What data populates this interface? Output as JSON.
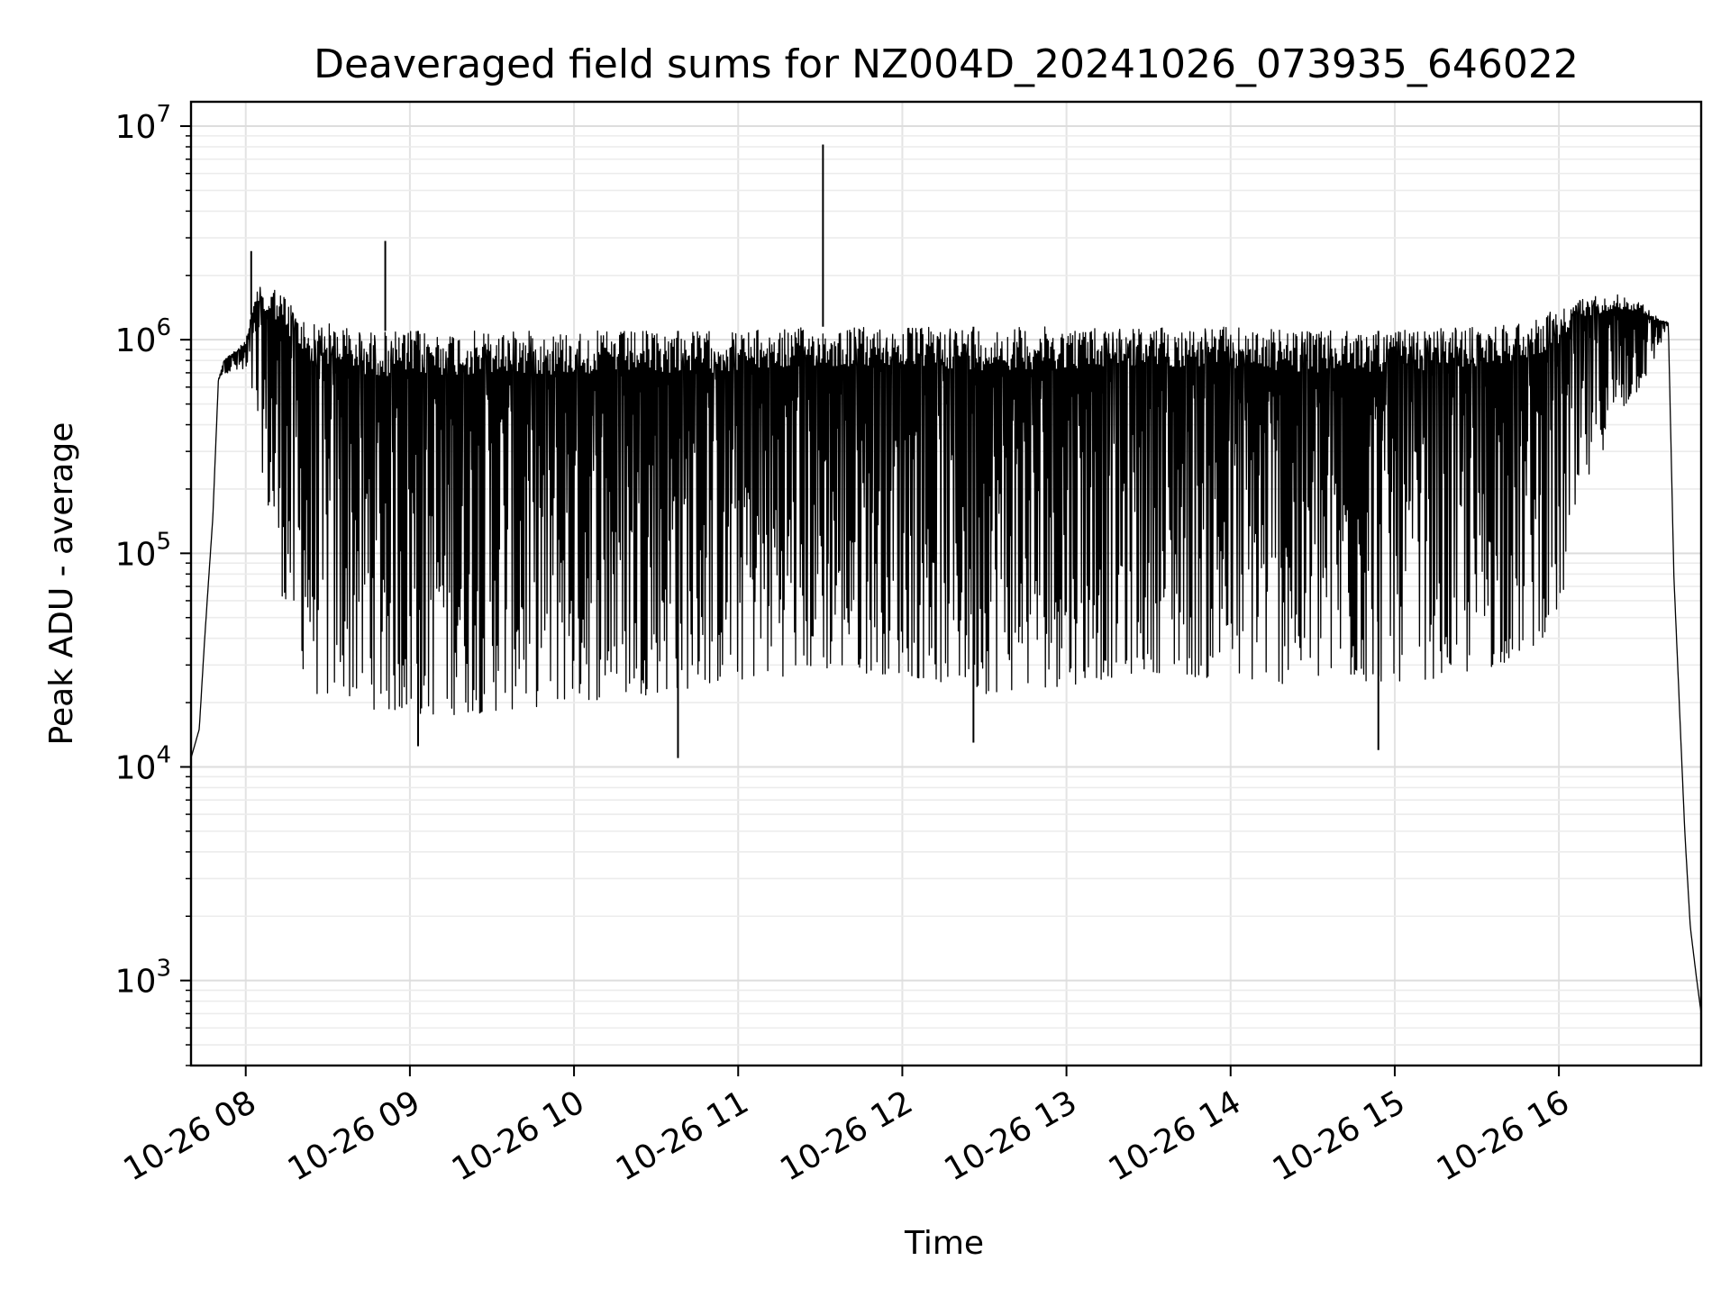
{
  "chart_data": {
    "type": "line",
    "title": "Deaveraged field sums for NZ004D_20241026_073935_646022",
    "xlabel": "Time",
    "ylabel": "Peak ADU - average",
    "yscale": "log",
    "ylim": [
      400,
      13000000
    ],
    "xlim": [
      "2024-10-26 07:40",
      "2024-10-26 16:52"
    ],
    "grid": true,
    "line_color": "#000000",
    "x_ticks": [
      {
        "t": "2024-10-26 08:00",
        "label": "10-26 08"
      },
      {
        "t": "2024-10-26 09:00",
        "label": "10-26 09"
      },
      {
        "t": "2024-10-26 10:00",
        "label": "10-26 10"
      },
      {
        "t": "2024-10-26 11:00",
        "label": "10-26 11"
      },
      {
        "t": "2024-10-26 12:00",
        "label": "10-26 12"
      },
      {
        "t": "2024-10-26 13:00",
        "label": "10-26 13"
      },
      {
        "t": "2024-10-26 14:00",
        "label": "10-26 14"
      },
      {
        "t": "2024-10-26 15:00",
        "label": "10-26 15"
      },
      {
        "t": "2024-10-26 16:00",
        "label": "10-26 16"
      }
    ],
    "y_ticks": [
      {
        "value": 1000,
        "base": "10",
        "exp": "3"
      },
      {
        "value": 10000,
        "base": "10",
        "exp": "4"
      },
      {
        "value": 100000,
        "base": "10",
        "exp": "5"
      },
      {
        "value": 1000000,
        "base": "10",
        "exp": "6"
      },
      {
        "value": 10000000,
        "base": "10",
        "exp": "7"
      }
    ],
    "series": [
      {
        "x": [
          "2024-10-26 07:40",
          "2024-10-26 07:43",
          "2024-10-26 07:45",
          "2024-10-26 07:48",
          "2024-10-26 07:50",
          "2024-10-26 07:52",
          "2024-10-26 07:54",
          "2024-10-26 07:57",
          "2024-10-26 08:00",
          "2024-10-26 08:03",
          "2024-10-26 08:05",
          "2024-10-26 08:07",
          "2024-10-26 08:10",
          "2024-10-26 08:15",
          "2024-10-26 08:20",
          "2024-10-26 08:25",
          "2024-10-26 08:30",
          "2024-10-26 08:35",
          "2024-10-26 08:40",
          "2024-10-26 08:50",
          "2024-10-26 09:00",
          "2024-10-26 09:30",
          "2024-10-26 10:00",
          "2024-10-26 10:30",
          "2024-10-26 11:00",
          "2024-10-26 11:30",
          "2024-10-26 12:00",
          "2024-10-26 12:30",
          "2024-10-26 13:00",
          "2024-10-26 13:30",
          "2024-10-26 14:00",
          "2024-10-26 14:30",
          "2024-10-26 15:00",
          "2024-10-26 15:30",
          "2024-10-26 15:50",
          "2024-10-26 16:00",
          "2024-10-26 16:10",
          "2024-10-26 16:20",
          "2024-10-26 16:30",
          "2024-10-26 16:35",
          "2024-10-26 16:40",
          "2024-10-26 16:42",
          "2024-10-26 16:44",
          "2024-10-26 16:46",
          "2024-10-26 16:48",
          "2024-10-26 16:50",
          "2024-10-26 16:52"
        ],
        "upper": [
          11000,
          15000,
          40000,
          150000,
          650000,
          800000,
          850000,
          900000,
          1000000,
          1500000,
          1800000,
          1600000,
          1800000,
          1600000,
          1300000,
          1200000,
          1200000,
          1200000,
          1100000,
          1100000,
          1100000,
          1100000,
          1100000,
          1100000,
          1100000,
          1150000,
          1150000,
          1150000,
          1150000,
          1150000,
          1150000,
          1100000,
          1100000,
          1150000,
          1250000,
          1400000,
          1600000,
          1650000,
          1500000,
          1300000,
          1200000,
          80000,
          20000,
          5000,
          1800,
          1100,
          700
        ],
        "lower": [
          11000,
          15000,
          40000,
          150000,
          650000,
          700000,
          700000,
          700000,
          650000,
          500000,
          300000,
          200000,
          100000,
          50000,
          30000,
          22000,
          20000,
          22000,
          20000,
          18000,
          17000,
          18000,
          20000,
          22000,
          25000,
          28000,
          27000,
          22000,
          24000,
          28000,
          25000,
          24000,
          25000,
          27000,
          35000,
          50000,
          200000,
          400000,
          600000,
          800000,
          1200000,
          80000,
          20000,
          5000,
          1800,
          1100,
          700
        ]
      }
    ],
    "spikes": [
      {
        "t": "2024-10-26 08:02",
        "value": 2600000
      },
      {
        "t": "2024-10-26 08:51",
        "value": 2900000
      },
      {
        "t": "2024-10-26 11:31",
        "value": 8200000
      },
      {
        "t": "2024-10-26 10:38",
        "value": 11000
      },
      {
        "t": "2024-10-26 14:54",
        "value": 12000
      },
      {
        "t": "2024-10-26 09:03",
        "value": 12500
      },
      {
        "t": "2024-10-26 12:26",
        "value": 13000
      }
    ]
  }
}
